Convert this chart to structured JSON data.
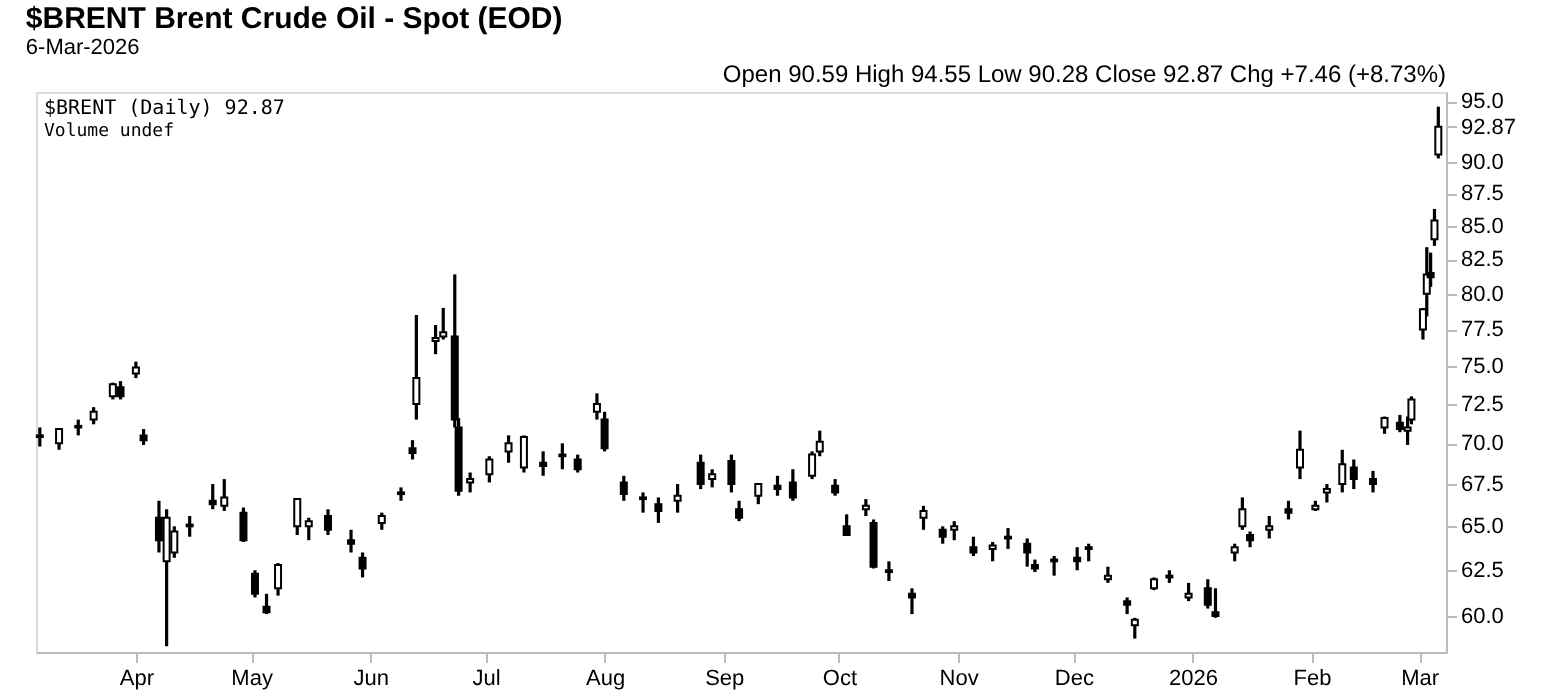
{
  "chart_data": {
    "type": "candlestick",
    "title": "$BRENT Brent Crude Oil - Spot (EOD)",
    "subtitle": "6-Mar-2026",
    "color": "#000000",
    "log": true,
    "grid": false,
    "x": [
      "2025-03-07",
      "2025-03-12",
      "2025-03-17",
      "2025-03-21",
      "2025-03-26",
      "2025-03-28",
      "2025-04-01",
      "2025-04-03",
      "2025-04-07",
      "2025-04-09",
      "2025-04-11",
      "2025-04-15",
      "2025-04-21",
      "2025-04-24",
      "2025-04-29",
      "2025-05-02",
      "2025-05-05",
      "2025-05-08",
      "2025-05-13",
      "2025-05-16",
      "2025-05-21",
      "2025-05-27",
      "2025-05-30",
      "2025-06-04",
      "2025-06-09",
      "2025-06-12",
      "2025-06-13",
      "2025-06-18",
      "2025-06-20",
      "2025-06-23",
      "2025-06-24",
      "2025-06-27",
      "2025-07-02",
      "2025-07-07",
      "2025-07-11",
      "2025-07-16",
      "2025-07-21",
      "2025-07-25",
      "2025-07-30",
      "2025-08-01",
      "2025-08-06",
      "2025-08-11",
      "2025-08-15",
      "2025-08-20",
      "2025-08-26",
      "2025-08-29",
      "2025-09-03",
      "2025-09-05",
      "2025-09-10",
      "2025-09-15",
      "2025-09-19",
      "2025-09-24",
      "2025-09-26",
      "2025-09-30",
      "2025-10-03",
      "2025-10-08",
      "2025-10-10",
      "2025-10-14",
      "2025-10-20",
      "2025-10-23",
      "2025-10-28",
      "2025-10-31",
      "2025-11-05",
      "2025-11-10",
      "2025-11-14",
      "2025-11-19",
      "2025-11-21",
      "2025-11-26",
      "2025-12-02",
      "2025-12-05",
      "2025-12-10",
      "2025-12-15",
      "2025-12-17",
      "2025-12-22",
      "2025-12-26",
      "2025-12-31",
      "2026-01-05",
      "2026-01-07",
      "2026-01-12",
      "2026-01-14",
      "2026-01-16",
      "2026-01-21",
      "2026-01-26",
      "2026-01-29",
      "2026-02-02",
      "2026-02-05",
      "2026-02-09",
      "2026-02-12",
      "2026-02-17",
      "2026-02-20",
      "2026-02-24",
      "2026-02-26",
      "2026-02-27",
      "2026-03-02",
      "2026-03-03",
      "2026-03-04",
      "2026-03-05",
      "2026-03-06"
    ],
    "ohlc": [
      [
        70.5,
        71.0,
        69.8,
        70.4
      ],
      [
        70.0,
        70.9,
        69.6,
        70.9
      ],
      [
        71.0,
        71.5,
        70.5,
        71.1
      ],
      [
        71.5,
        72.3,
        71.2,
        72.0
      ],
      [
        73.0,
        73.9,
        72.8,
        73.8
      ],
      [
        73.6,
        74.0,
        72.8,
        73.0
      ],
      [
        74.5,
        75.3,
        74.2,
        74.9
      ],
      [
        70.5,
        70.9,
        69.9,
        70.2
      ],
      [
        65.5,
        66.5,
        63.5,
        64.2
      ],
      [
        63.0,
        66.0,
        58.4,
        65.5
      ],
      [
        63.5,
        65.0,
        63.2,
        64.7
      ],
      [
        65.0,
        65.6,
        64.4,
        65.1
      ],
      [
        66.5,
        67.5,
        66.0,
        66.3
      ],
      [
        66.2,
        67.8,
        65.9,
        66.7
      ],
      [
        65.8,
        66.1,
        64.1,
        64.2
      ],
      [
        62.3,
        62.5,
        61.0,
        61.2
      ],
      [
        60.5,
        61.2,
        60.1,
        60.2
      ],
      [
        61.5,
        62.9,
        61.1,
        62.8
      ],
      [
        65.0,
        66.6,
        64.5,
        66.6
      ],
      [
        65.0,
        65.5,
        64.2,
        65.3
      ],
      [
        65.6,
        66.0,
        64.5,
        64.8
      ],
      [
        64.2,
        64.8,
        63.5,
        64.0
      ],
      [
        63.2,
        63.5,
        62.1,
        62.6
      ],
      [
        65.2,
        65.8,
        64.8,
        65.6
      ],
      [
        66.9,
        67.3,
        66.5,
        67.0
      ],
      [
        69.7,
        70.2,
        69.0,
        69.4
      ],
      [
        72.5,
        78.5,
        71.5,
        74.2
      ],
      [
        76.7,
        77.8,
        75.8,
        76.9
      ],
      [
        77.0,
        79.0,
        76.8,
        77.3
      ],
      [
        77.0,
        81.4,
        71.0,
        71.5
      ],
      [
        71.0,
        71.6,
        66.8,
        67.1
      ],
      [
        67.6,
        68.2,
        67.0,
        67.8
      ],
      [
        68.1,
        69.2,
        67.6,
        69.0
      ],
      [
        69.5,
        70.5,
        68.8,
        70.0
      ],
      [
        68.5,
        70.5,
        68.2,
        70.4
      ],
      [
        68.8,
        69.5,
        68.0,
        68.6
      ],
      [
        69.2,
        70.0,
        68.4,
        69.3
      ],
      [
        69.0,
        69.3,
        68.2,
        68.4
      ],
      [
        72.0,
        73.2,
        71.5,
        72.5
      ],
      [
        71.5,
        72.0,
        69.5,
        69.7
      ],
      [
        67.6,
        68.0,
        66.5,
        66.9
      ],
      [
        66.7,
        67.0,
        65.8,
        66.6
      ],
      [
        66.3,
        66.7,
        65.2,
        65.9
      ],
      [
        66.5,
        67.5,
        65.8,
        66.8
      ],
      [
        68.8,
        69.3,
        67.2,
        67.5
      ],
      [
        67.8,
        68.4,
        67.3,
        68.1
      ],
      [
        68.9,
        69.3,
        67.0,
        67.5
      ],
      [
        66.0,
        66.5,
        65.3,
        65.5
      ],
      [
        66.8,
        67.5,
        66.3,
        67.5
      ],
      [
        67.4,
        68.0,
        66.8,
        67.2
      ],
      [
        67.6,
        68.4,
        66.5,
        66.7
      ],
      [
        68.0,
        69.5,
        67.8,
        69.3
      ],
      [
        69.5,
        70.8,
        69.2,
        70.1
      ],
      [
        67.4,
        67.8,
        66.8,
        67.0
      ],
      [
        65.0,
        65.7,
        64.5,
        64.5
      ],
      [
        66.0,
        66.6,
        65.6,
        66.2
      ],
      [
        65.2,
        65.4,
        62.6,
        62.7
      ],
      [
        62.5,
        63.0,
        61.9,
        62.4
      ],
      [
        61.2,
        61.5,
        60.1,
        61.0
      ],
      [
        65.5,
        66.2,
        64.8,
        65.9
      ],
      [
        64.8,
        65.0,
        64.0,
        64.4
      ],
      [
        64.8,
        65.3,
        64.2,
        65.0
      ],
      [
        63.8,
        64.4,
        63.3,
        63.5
      ],
      [
        63.7,
        64.1,
        63.0,
        63.9
      ],
      [
        64.3,
        64.9,
        63.7,
        64.4
      ],
      [
        64.0,
        64.3,
        62.7,
        63.5
      ],
      [
        62.8,
        63.1,
        62.4,
        62.6
      ],
      [
        63.0,
        63.3,
        62.2,
        63.1
      ],
      [
        63.2,
        63.8,
        62.5,
        63.0
      ],
      [
        63.7,
        64.0,
        63.0,
        63.8
      ],
      [
        62.0,
        62.7,
        61.8,
        62.2
      ],
      [
        60.8,
        61.0,
        60.1,
        60.6
      ],
      [
        59.5,
        59.9,
        58.8,
        59.8
      ],
      [
        61.5,
        62.1,
        61.4,
        62.0
      ],
      [
        62.2,
        62.5,
        61.8,
        62.1
      ],
      [
        61.0,
        61.8,
        60.8,
        61.2
      ],
      [
        61.5,
        62.0,
        60.4,
        60.6
      ],
      [
        60.2,
        61.5,
        59.9,
        60.0
      ],
      [
        63.5,
        64.0,
        63.0,
        63.8
      ],
      [
        65.0,
        66.7,
        64.8,
        66.0
      ],
      [
        64.5,
        64.7,
        63.8,
        64.2
      ],
      [
        64.8,
        65.6,
        64.3,
        65.0
      ],
      [
        66.0,
        66.5,
        65.4,
        65.8
      ],
      [
        68.5,
        70.8,
        67.8,
        69.6
      ],
      [
        66.0,
        66.5,
        65.9,
        66.2
      ],
      [
        67.0,
        67.5,
        66.4,
        67.2
      ],
      [
        67.5,
        69.6,
        67.0,
        68.7
      ],
      [
        68.5,
        69.0,
        67.2,
        67.8
      ],
      [
        67.8,
        68.3,
        67.0,
        67.5
      ],
      [
        71.0,
        71.7,
        70.6,
        71.6
      ],
      [
        71.3,
        71.8,
        70.7,
        70.9
      ],
      [
        70.8,
        71.7,
        69.9,
        71.0
      ],
      [
        71.5,
        73.0,
        71.2,
        72.8
      ],
      [
        77.5,
        79.0,
        76.8,
        78.9
      ],
      [
        80.0,
        83.4,
        78.4,
        81.4
      ],
      [
        81.5,
        83.0,
        80.5,
        81.2
      ],
      [
        84.0,
        86.3,
        83.5,
        85.41
      ],
      [
        90.59,
        94.55,
        90.28,
        92.87
      ]
    ],
    "xlim": [
      "2025-03-06",
      "2026-03-08"
    ],
    "xticks": [
      {
        "value": "2025-04-01",
        "label": "Apr"
      },
      {
        "value": "2025-05-01",
        "label": "May"
      },
      {
        "value": "2025-06-01",
        "label": "Jun"
      },
      {
        "value": "2025-07-01",
        "label": "Jul"
      },
      {
        "value": "2025-08-01",
        "label": "Aug"
      },
      {
        "value": "2025-09-01",
        "label": "Sep"
      },
      {
        "value": "2025-10-01",
        "label": "Oct"
      },
      {
        "value": "2025-11-01",
        "label": "Nov"
      },
      {
        "value": "2025-12-01",
        "label": "Dec"
      },
      {
        "value": "2026-01-01",
        "label": "2026"
      },
      {
        "value": "2026-02-01",
        "label": "Feb"
      },
      {
        "value": "2026-03-01",
        "label": "Mar"
      }
    ],
    "ylim": [
      58.1,
      95.8
    ],
    "yticks": [
      {
        "value": 60,
        "label": "60.0"
      },
      {
        "value": 62.5,
        "label": "62.5"
      },
      {
        "value": 65,
        "label": "65.0"
      },
      {
        "value": 67.5,
        "label": "67.5"
      },
      {
        "value": 70,
        "label": "70.0"
      },
      {
        "value": 72.5,
        "label": "72.5"
      },
      {
        "value": 75,
        "label": "75.0"
      },
      {
        "value": 77.5,
        "label": "77.5"
      },
      {
        "value": 80,
        "label": "80.0"
      },
      {
        "value": 82.5,
        "label": "82.5"
      },
      {
        "value": 85,
        "label": "85.0"
      },
      {
        "value": 87.5,
        "label": "87.5"
      },
      {
        "value": 90,
        "label": "90.0"
      },
      {
        "value": 92.87,
        "label": "92.87"
      },
      {
        "value": 95,
        "label": "95.0"
      }
    ],
    "annotations": [
      "Open 90.59  High 94.55  Low 90.28  Close 92.87  Chg +7.46 (+8.73%)",
      "$BRENT (Daily) 92.87",
      "Volume undef"
    ]
  }
}
